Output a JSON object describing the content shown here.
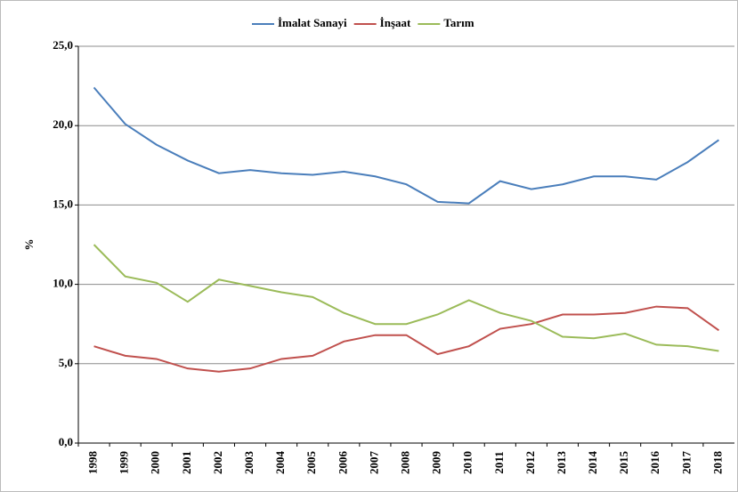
{
  "chart_data": {
    "type": "line",
    "y_label": "%",
    "categories": [
      "1998",
      "1999",
      "2000",
      "2001",
      "2002",
      "2003",
      "2004",
      "2005",
      "2006",
      "2007",
      "2008",
      "2009",
      "2010",
      "2011",
      "2012",
      "2013",
      "2014",
      "2015",
      "2016",
      "2017",
      "2018"
    ],
    "series": [
      {
        "name": "İmalat Sanayi",
        "color": "#4a7ebb",
        "values": [
          22.4,
          20.1,
          18.8,
          17.8,
          17.0,
          17.2,
          17.0,
          16.9,
          17.1,
          16.8,
          16.3,
          15.2,
          15.1,
          16.5,
          16.0,
          16.3,
          16.8,
          16.8,
          16.6,
          17.7,
          19.1
        ]
      },
      {
        "name": "İnşaat",
        "color": "#c0504d",
        "values": [
          6.1,
          5.5,
          5.3,
          4.7,
          4.5,
          4.7,
          5.3,
          5.5,
          6.4,
          6.8,
          6.8,
          5.6,
          6.1,
          7.2,
          7.5,
          8.1,
          8.1,
          8.2,
          8.6,
          8.5,
          7.1
        ]
      },
      {
        "name": "Tarım",
        "color": "#9bbb59",
        "values": [
          12.5,
          10.5,
          10.1,
          8.9,
          10.3,
          9.9,
          9.5,
          9.2,
          8.2,
          7.5,
          7.5,
          8.1,
          9.0,
          8.2,
          7.7,
          6.7,
          6.6,
          6.9,
          6.2,
          6.1,
          5.8
        ]
      }
    ],
    "ylim": [
      0,
      25
    ],
    "yticks": [
      {
        "value": 0,
        "label": "0,0"
      },
      {
        "value": 5,
        "label": "5,0"
      },
      {
        "value": 10,
        "label": "10,0"
      },
      {
        "value": 15,
        "label": "15,0"
      },
      {
        "value": 20,
        "label": "20,0"
      },
      {
        "value": 25,
        "label": "25,0"
      }
    ],
    "grid": true,
    "legend": "top"
  }
}
